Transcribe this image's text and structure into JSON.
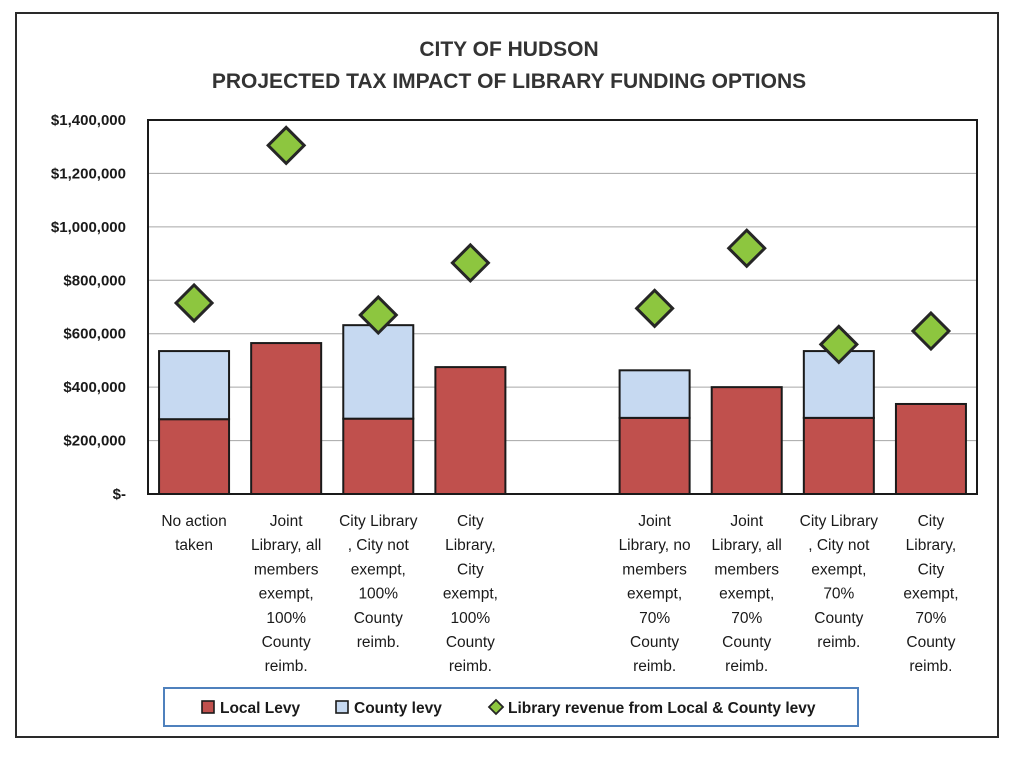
{
  "chart_data": {
    "type": "bar",
    "title": [
      "CITY OF HUDSON",
      "PROJECTED TAX IMPACT OF LIBRARY FUNDING OPTIONS"
    ],
    "categories": [
      [
        "No action",
        "taken"
      ],
      [
        "Joint",
        "Library, all",
        "members",
        "exempt,",
        "100%",
        "County",
        "reimb."
      ],
      [
        "City Library",
        ", City not",
        "exempt,",
        "100%",
        "County",
        "reimb."
      ],
      [
        "City",
        "Library,",
        "City",
        "exempt,",
        "100%",
        "County",
        "reimb."
      ],
      [],
      [
        "Joint",
        "Library, no",
        "members",
        "exempt,",
        "70%",
        "County",
        "reimb."
      ],
      [
        "Joint",
        "Library, all",
        "members",
        "exempt,",
        "70%",
        "County",
        "reimb."
      ],
      [
        "City Library",
        ", City not",
        "exempt,",
        "70%",
        "County",
        "reimb."
      ],
      [
        "City",
        "Library,",
        "City",
        "exempt,",
        "70%",
        "County",
        "reimb."
      ]
    ],
    "series": [
      {
        "name": "Local Levy",
        "kind": "stacked-bar",
        "color": "#c0504d",
        "values": [
          280000,
          565000,
          282000,
          475000,
          null,
          285000,
          400000,
          285000,
          337000
        ]
      },
      {
        "name": "County levy",
        "kind": "stacked-bar",
        "color": "#c6d9f1",
        "values": [
          255000,
          null,
          350000,
          null,
          null,
          178000,
          null,
          250000,
          null
        ]
      },
      {
        "name": "Library revenue from Local & County levy",
        "kind": "marker",
        "color": "#8dc63f",
        "values": [
          715000,
          1305000,
          670000,
          865000,
          null,
          695000,
          920000,
          560000,
          610000
        ]
      }
    ],
    "ylim": [
      0,
      1400000
    ],
    "yticks": [
      "$-",
      "$200,000",
      "$400,000",
      "$600,000",
      "$800,000",
      "$1,000,000",
      "$1,200,000",
      "$1,400,000"
    ],
    "ytick_values": [
      0,
      200000,
      400000,
      600000,
      800000,
      1000000,
      1200000,
      1400000
    ],
    "grid": true,
    "legend_position": "bottom"
  }
}
